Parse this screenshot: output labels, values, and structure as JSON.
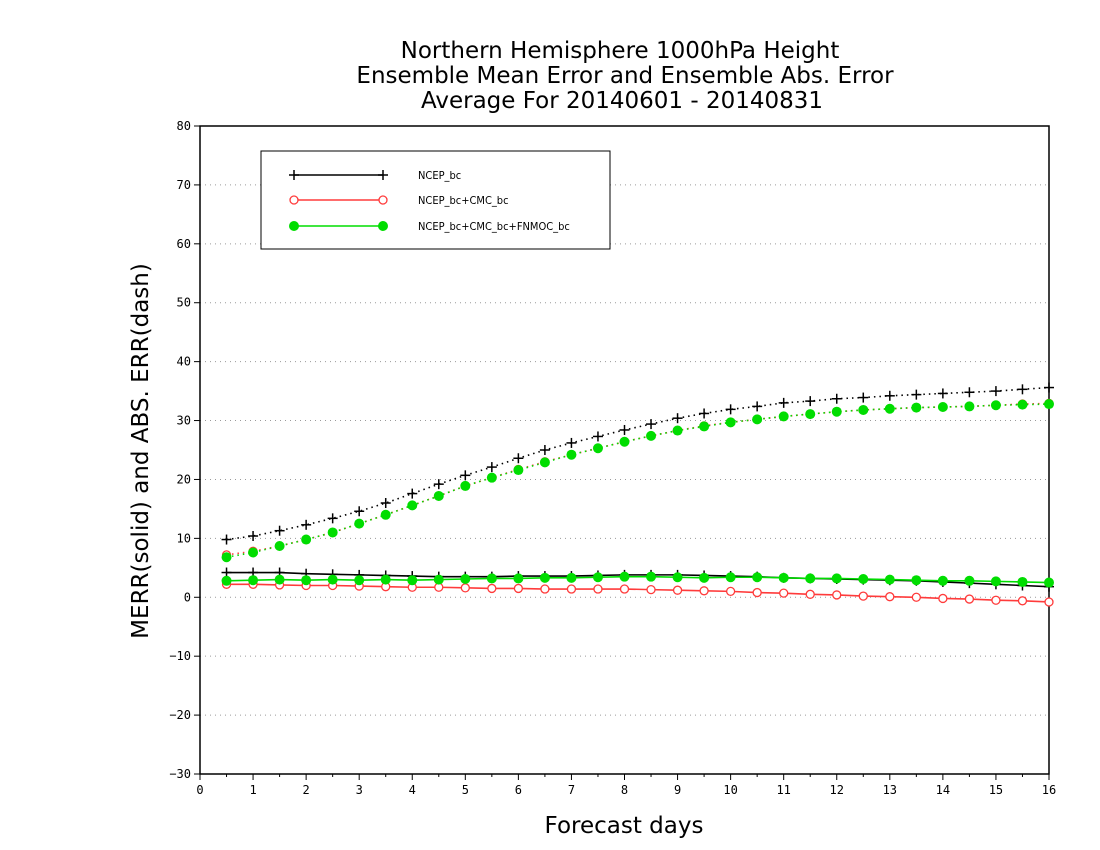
{
  "chart_data": {
    "type": "line",
    "title_lines": [
      "Northern Hemisphere 1000hPa Height",
      "Ensemble Mean Error and Ensemble Abs. Error",
      "Average For 20140601 - 20140831"
    ],
    "xlabel": "Forecast days",
    "ylabel": "MERR(solid) and ABS. ERR(dash)",
    "xlim": [
      0,
      16
    ],
    "ylim": [
      -30,
      80
    ],
    "xticks": [
      "0",
      "1",
      "2",
      "3",
      "4",
      "5",
      "6",
      "7",
      "8",
      "9",
      "10",
      "11",
      "12",
      "13",
      "14",
      "15",
      "16"
    ],
    "yticks": [
      "80",
      "70",
      "60",
      "50",
      "40",
      "30",
      "20",
      "10",
      "0",
      "−10",
      "−20",
      "−30"
    ],
    "grid": "horizontal dotted",
    "legend_position": "top-left",
    "x": [
      0.5,
      1,
      1.5,
      2,
      2.5,
      3,
      3.5,
      4,
      4.5,
      5,
      5.5,
      6,
      6.5,
      7,
      7.5,
      8,
      8.5,
      9,
      9.5,
      10,
      10.5,
      11,
      11.5,
      12,
      12.5,
      13,
      13.5,
      14,
      14.5,
      15,
      15.5,
      16
    ],
    "series": [
      {
        "name": "NCEP_bc",
        "color": "#000000",
        "marker": "plus",
        "merr": [
          4.2,
          4.2,
          4.2,
          4.0,
          3.9,
          3.8,
          3.7,
          3.6,
          3.5,
          3.5,
          3.5,
          3.6,
          3.6,
          3.6,
          3.7,
          3.8,
          3.8,
          3.8,
          3.7,
          3.6,
          3.5,
          3.3,
          3.2,
          3.1,
          3.0,
          2.9,
          2.8,
          2.6,
          2.4,
          2.2,
          2.0,
          1.8
        ],
        "abs_err": [
          9.8,
          10.4,
          11.3,
          12.3,
          13.4,
          14.6,
          16.0,
          17.6,
          19.2,
          20.7,
          22.1,
          23.6,
          25.0,
          26.2,
          27.3,
          28.4,
          29.4,
          30.4,
          31.2,
          31.9,
          32.4,
          33.0,
          33.3,
          33.7,
          33.9,
          34.2,
          34.4,
          34.6,
          34.8,
          35.0,
          35.3,
          35.6
        ]
      },
      {
        "name": "NCEP_bc+CMC_bc",
        "color": "#ff3b3b",
        "marker": "open-circle",
        "merr": [
          2.2,
          2.2,
          2.1,
          2.0,
          2.0,
          1.9,
          1.8,
          1.7,
          1.7,
          1.6,
          1.5,
          1.5,
          1.4,
          1.4,
          1.4,
          1.4,
          1.3,
          1.2,
          1.1,
          1.0,
          0.8,
          0.7,
          0.5,
          0.4,
          0.2,
          0.1,
          0.0,
          -0.2,
          -0.3,
          -0.5,
          -0.6,
          -0.8
        ],
        "abs_err": [
          7.2,
          7.8,
          8.7,
          9.8,
          11.0,
          12.5,
          14.0,
          15.6,
          17.2,
          18.9,
          20.3,
          21.7,
          23.0,
          24.2,
          25.3,
          26.4,
          27.4,
          28.3,
          29.1,
          29.7,
          30.2,
          30.7,
          31.1,
          31.5,
          31.8,
          32.0,
          32.2,
          32.3,
          32.4,
          32.6,
          32.8,
          32.9
        ]
      },
      {
        "name": "NCEP_bc+CMC_bc+FNMOC_bc",
        "color": "#00dd00",
        "marker": "filled-circle",
        "merr": [
          2.8,
          2.9,
          3.0,
          2.9,
          3.0,
          2.9,
          3.0,
          2.9,
          3.0,
          3.1,
          3.2,
          3.2,
          3.3,
          3.3,
          3.4,
          3.5,
          3.5,
          3.4,
          3.3,
          3.4,
          3.4,
          3.3,
          3.2,
          3.2,
          3.1,
          3.0,
          2.9,
          2.8,
          2.8,
          2.7,
          2.6,
          2.5
        ],
        "abs_err": [
          6.8,
          7.6,
          8.7,
          9.8,
          11.0,
          12.5,
          14.0,
          15.6,
          17.2,
          18.9,
          20.3,
          21.6,
          22.9,
          24.2,
          25.3,
          26.4,
          27.4,
          28.3,
          29.0,
          29.7,
          30.2,
          30.7,
          31.1,
          31.5,
          31.8,
          32.0,
          32.2,
          32.3,
          32.4,
          32.6,
          32.7,
          32.8
        ]
      }
    ]
  }
}
